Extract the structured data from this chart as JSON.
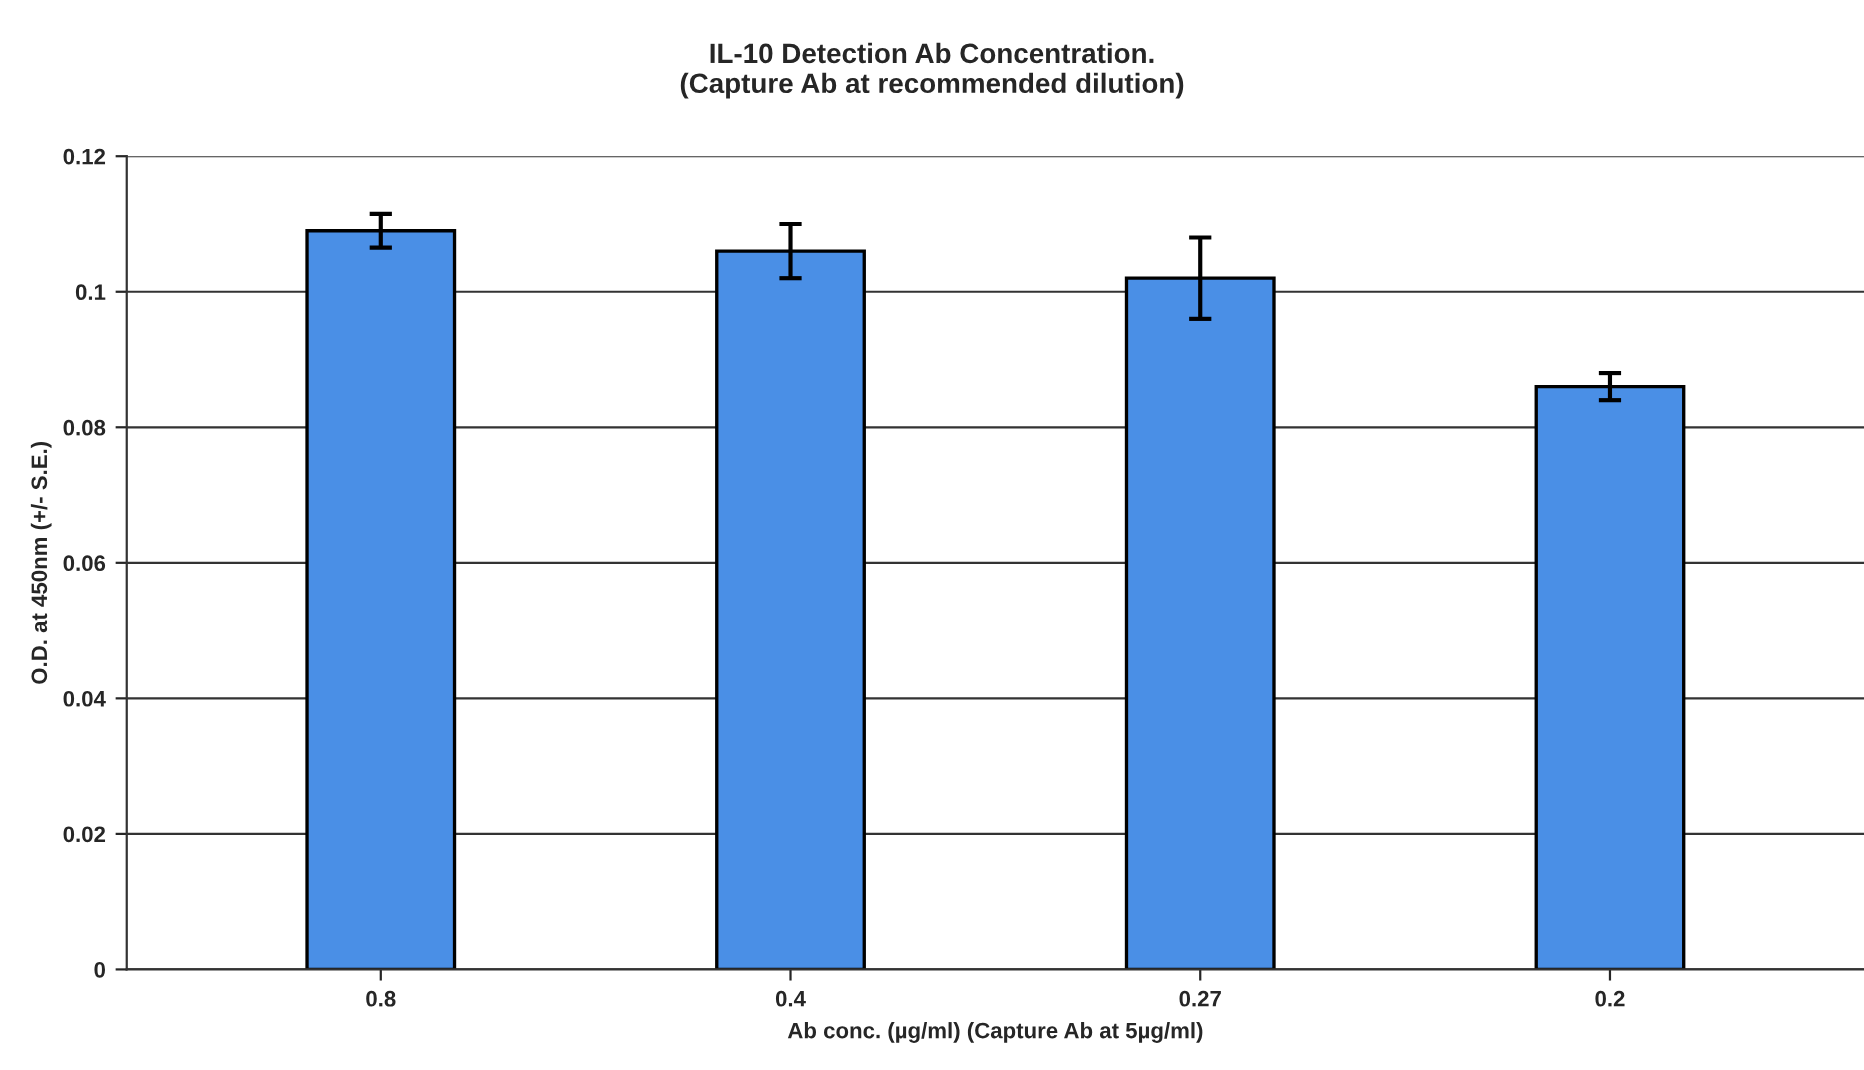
{
  "chart_data": {
    "type": "bar",
    "title": "IL-10 Detection Ab Concentration.\n(Capture Ab at recommended dilution)",
    "xlabel": "Ab conc. (µg/ml) (Capture Ab at 5µg/ml)",
    "ylabel": "O.D. at 450nm (+/- S.E.)",
    "categories": [
      "0.8",
      "0.4",
      "0.27",
      "0.2"
    ],
    "values": [
      0.109,
      0.106,
      0.102,
      0.086
    ],
    "errors": [
      0.0025,
      0.004,
      0.006,
      0.002
    ],
    "color": "#4a8fe6",
    "ylim": [
      0,
      0.12
    ],
    "yticks": [
      {
        "value": 0,
        "label": "0"
      },
      0.02,
      0.04,
      0.06,
      0.08,
      0.1,
      0.12
    ],
    "grid": "y",
    "legend": false
  }
}
